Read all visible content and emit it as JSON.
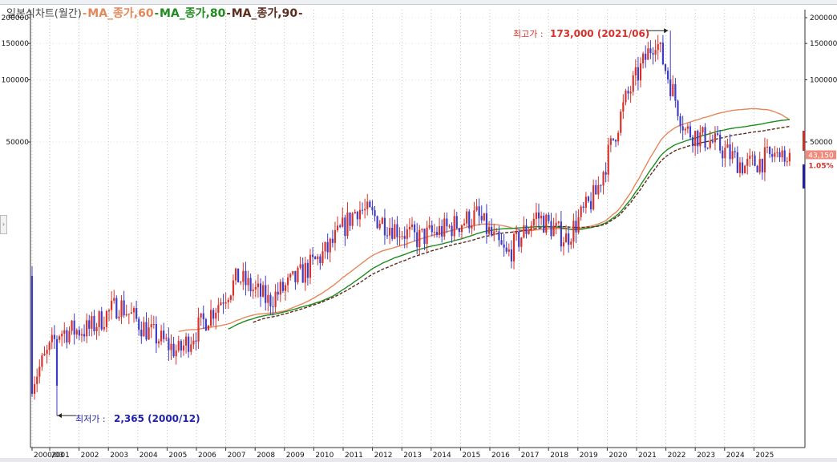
{
  "legend": {
    "chart_name": "일본식차트(월간)",
    "indicators": [
      {
        "label": "MA_종가,60",
        "color": "#e6875a"
      },
      {
        "label": "MA_종가,80",
        "color": "#1e8c1e"
      },
      {
        "label": "MA_종가,90",
        "color": "#5a2d1e"
      }
    ]
  },
  "annotations": {
    "high_label": "최고가 : ",
    "high_value": "173,000 (2021/06)",
    "low_label": "최저가 : ",
    "low_value": "2,365 (2000/12)"
  },
  "price_tag": {
    "price": "43,150",
    "change": "1.05%"
  },
  "colors": {
    "up": "#d8312a",
    "down": "#3c3cc8",
    "ma60": "#e6875a",
    "ma80": "#1e8c1e",
    "ma90": "#5a2d1e",
    "high_text": "#d8312a",
    "low_text": "#2222aa"
  },
  "chart_data": {
    "type": "candlestick",
    "scale": "log",
    "y_ticks_left": [
      "200000",
      "150000",
      "100000",
      "50000"
    ],
    "y_ticks_right": [
      "200000",
      "150000",
      "100000",
      "50000"
    ],
    "x_labels": [
      "2000/03",
      "2001",
      "2002",
      "2003",
      "2004",
      "2005",
      "2006",
      "2007",
      "2008",
      "2009",
      "2010",
      "2011",
      "2012",
      "2013",
      "2014",
      "2015",
      "2016",
      "2017",
      "2018",
      "2019",
      "2020",
      "2021",
      "2022",
      "2023",
      "2024",
      "2025"
    ],
    "yearly_close": [
      {
        "date": "2000",
        "value": 3300
      },
      {
        "date": "2001",
        "value": 6000
      },
      {
        "date": "2002",
        "value": 6200
      },
      {
        "date": "2003",
        "value": 8200
      },
      {
        "date": "2004",
        "value": 6000
      },
      {
        "date": "2005",
        "value": 4800
      },
      {
        "date": "2006",
        "value": 7200
      },
      {
        "date": "2007",
        "value": 11000
      },
      {
        "date": "2008",
        "value": 8500
      },
      {
        "date": "2009",
        "value": 11000
      },
      {
        "date": "2010",
        "value": 15000
      },
      {
        "date": "2011",
        "value": 24000
      },
      {
        "date": "2012",
        "value": 20000
      },
      {
        "date": "2013",
        "value": 17000
      },
      {
        "date": "2014",
        "value": 19000
      },
      {
        "date": "2015",
        "value": 22000
      },
      {
        "date": "2016",
        "value": 14000
      },
      {
        "date": "2017",
        "value": 22000
      },
      {
        "date": "2018",
        "value": 17000
      },
      {
        "date": "2019",
        "value": 28000
      },
      {
        "date": "2020",
        "value": 80000
      },
      {
        "date": "2021",
        "value": 160000
      },
      {
        "date": "2022",
        "value": 57000
      },
      {
        "date": "2023",
        "value": 49000
      },
      {
        "date": "2024",
        "value": 38000
      },
      {
        "date": "2025",
        "value": 43150
      }
    ],
    "high": {
      "value": 173000,
      "date": "2021/06"
    },
    "low": {
      "value": 2365,
      "date": "2000/12"
    },
    "last_price": 43150,
    "last_change_pct": 1.05,
    "series": [
      {
        "name": "MA_종가,60"
      },
      {
        "name": "MA_종가,80"
      },
      {
        "name": "MA_종가,90"
      }
    ],
    "grid": true
  }
}
